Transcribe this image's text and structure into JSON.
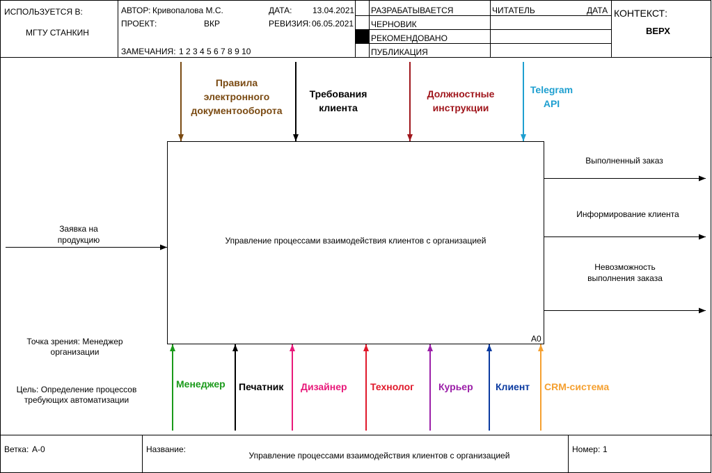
{
  "header": {
    "used_in_label": "ИСПОЛЬЗУЕТСЯ В:",
    "used_in_value": "МГТУ СТАНКИН",
    "author_label": "АВТОР:",
    "author_value": "Кривопалова М.С.",
    "project_label": "ПРОЕКТ:",
    "project_value": "ВКР",
    "date_label": "ДАТА:",
    "date_value": "13.04.2021",
    "revision_label": "РЕВИЗИЯ:",
    "revision_value": "06.05.2021",
    "notes_label": "ЗАМЕЧАНИЯ:",
    "notes_value": "1 2 3 4 5 6 7 8 9 10",
    "status_working": "РАЗРАБАТЫВАЕТСЯ",
    "status_draft": "ЧЕРНОВИК",
    "status_recommended": "РЕКОМЕНДОВАНО",
    "status_publication": "ПУБЛИКАЦИЯ",
    "reader_label": "ЧИТАТЕЛЬ",
    "reader_date_label": "ДАТА",
    "context_label": "КОНТЕКСТ:",
    "context_value": "ВЕРХ"
  },
  "activity": {
    "label": "Управление процессами взаимодействия клиентов с организацией",
    "node_number": "A0"
  },
  "controls": [
    {
      "line1": "Правила",
      "line2": "электронного",
      "line3": "документооборота",
      "color": "#7a4a12"
    },
    {
      "line1": "Требования",
      "line2": "клиента",
      "color": "#000000"
    },
    {
      "line1": "Должностные",
      "line2": "инструкции",
      "color": "#a0161c"
    },
    {
      "line1": "Telegram",
      "line2": "API",
      "color": "#1e9fd0"
    }
  ],
  "input": {
    "line1": "Заявка на",
    "line2": "продукцию"
  },
  "outputs": [
    {
      "line1": "Выполненный заказ"
    },
    {
      "line1": "Информирование клиента"
    },
    {
      "line1": "Невозможность",
      "line2": "выполнения заказа"
    }
  ],
  "mechanisms": [
    {
      "label": "Менеджер",
      "color": "#1a9a1a"
    },
    {
      "label": "Печатник",
      "color": "#000000"
    },
    {
      "label": "Дизайнер",
      "color": "#e8197a"
    },
    {
      "label": "Технолог",
      "color": "#e0182a"
    },
    {
      "label": "Курьер",
      "color": "#9b1fa8"
    },
    {
      "label": "Клиент",
      "color": "#0a3aa0"
    },
    {
      "label": "CRM-система",
      "color": "#f5a030"
    }
  ],
  "viewpoint": {
    "line1": "Точка зрения: Менеджер",
    "line2": "организации"
  },
  "purpose": {
    "line1": "Цель: Определение процессов",
    "line2": "требующих автоматизации"
  },
  "footer": {
    "node_label": "Ветка:",
    "node_value": "А-0",
    "title_label": "Название:",
    "title_value": "Управление процессами взаимодействия клиентов с организацией",
    "number_label": "Номер:",
    "number_value": "1"
  }
}
